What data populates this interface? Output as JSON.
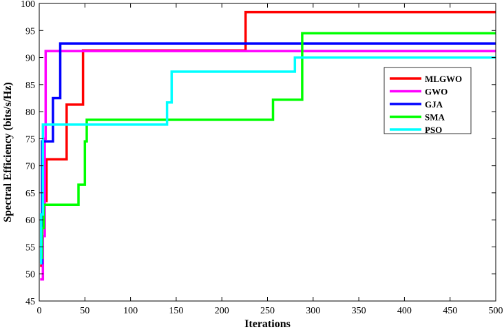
{
  "chart_data": {
    "type": "line",
    "xlabel": "Iterations",
    "ylabel": "Spectral Efficiency (bits/s/Hz)",
    "xlim": [
      0,
      500
    ],
    "ylim": [
      45,
      100
    ],
    "xticks": [
      0,
      50,
      100,
      150,
      200,
      250,
      300,
      350,
      400,
      450,
      500
    ],
    "yticks": [
      45,
      50,
      55,
      60,
      65,
      70,
      75,
      80,
      85,
      90,
      95,
      100
    ],
    "grid": false,
    "legend_position": "right",
    "series": [
      {
        "name": "MLGWO",
        "color": "#ff0000",
        "points": [
          [
            1,
            51.5
          ],
          [
            3,
            51.5
          ],
          [
            3,
            60
          ],
          [
            5,
            60
          ],
          [
            5,
            63.5
          ],
          [
            8,
            63.5
          ],
          [
            8,
            71.2
          ],
          [
            30,
            71.2
          ],
          [
            30,
            81.3
          ],
          [
            48,
            81.3
          ],
          [
            48,
            91.3
          ],
          [
            226,
            91.3
          ],
          [
            226,
            98.4
          ],
          [
            500,
            98.4
          ]
        ]
      },
      {
        "name": "GWO",
        "color": "#ff00ff",
        "points": [
          [
            1,
            49
          ],
          [
            4,
            49
          ],
          [
            4,
            57
          ],
          [
            6,
            57
          ],
          [
            6,
            75
          ],
          [
            7,
            75
          ],
          [
            7,
            91.2
          ],
          [
            500,
            91.2
          ]
        ]
      },
      {
        "name": "GJA",
        "color": "#0000ff",
        "points": [
          [
            1,
            52
          ],
          [
            3,
            52
          ],
          [
            3,
            74.5
          ],
          [
            15,
            74.5
          ],
          [
            15,
            82.5
          ],
          [
            23,
            82.5
          ],
          [
            23,
            92.6
          ],
          [
            500,
            92.6
          ]
        ]
      },
      {
        "name": "SMA",
        "color": "#00ff00",
        "points": [
          [
            1,
            53
          ],
          [
            3,
            53
          ],
          [
            3,
            58.5
          ],
          [
            5,
            58.5
          ],
          [
            5,
            62.8
          ],
          [
            43,
            62.8
          ],
          [
            43,
            66.5
          ],
          [
            50,
            66.5
          ],
          [
            50,
            74.5
          ],
          [
            52,
            74.5
          ],
          [
            52,
            78.5
          ],
          [
            256,
            78.5
          ],
          [
            256,
            82.2
          ],
          [
            288,
            82.2
          ],
          [
            288,
            94.5
          ],
          [
            500,
            94.5
          ]
        ]
      },
      {
        "name": "PSO",
        "color": "#00ffff",
        "points": [
          [
            1,
            52
          ],
          [
            2,
            52
          ],
          [
            2,
            61
          ],
          [
            4,
            61
          ],
          [
            4,
            77.6
          ],
          [
            140,
            77.6
          ],
          [
            140,
            81.7
          ],
          [
            145,
            81.7
          ],
          [
            145,
            87.4
          ],
          [
            280,
            87.4
          ],
          [
            280,
            90
          ],
          [
            500,
            90
          ]
        ]
      }
    ]
  }
}
